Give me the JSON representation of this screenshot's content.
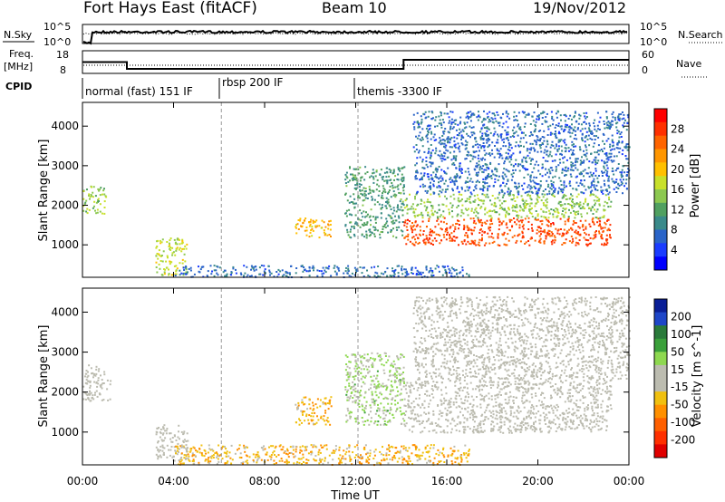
{
  "header": {
    "title": "Fort Hays East (fitACF)",
    "beam": "Beam 10",
    "date": "19/Nov/2012"
  },
  "noise_panel": {
    "left_label": "N.Sky",
    "right_label": "N.Search",
    "left_ticks": [
      "10^5",
      "10^0"
    ],
    "right_ticks": [
      "10^5",
      "10^0"
    ]
  },
  "freq_panel": {
    "left_label_1": "Freq.",
    "left_label_2": "[MHz]",
    "right_label": "Nave",
    "left_ticks": [
      "18",
      "8"
    ],
    "right_ticks": [
      "60",
      "0"
    ],
    "freq_series": [
      [
        0,
        13
      ],
      [
        1.95,
        13
      ],
      [
        1.95,
        10
      ],
      [
        14.1,
        10
      ],
      [
        14.1,
        14
      ],
      [
        24,
        14
      ]
    ]
  },
  "cpid_panel": {
    "label": "CPID",
    "modes": [
      {
        "start": 0,
        "end": 6.1,
        "name": "normal (fast) 151 IF"
      },
      {
        "start": 6.1,
        "end": 12.1,
        "name": "rbsp 200 IF"
      },
      {
        "start": 12.1,
        "end": 24,
        "name": "themis -3300 IF"
      }
    ]
  },
  "power_panel": {
    "ylabel": "Slant Range [km]",
    "yticks": [
      "4000",
      "3000",
      "2000",
      "1000"
    ],
    "colorbar_label": "Power [dB]",
    "colorbar_ticks": [
      "28",
      "24",
      "20",
      "16",
      "12",
      "8",
      "4"
    ],
    "colorbar_colors": [
      "#ff0000",
      "#ff3000",
      "#ff6400",
      "#ff9600",
      "#ffc000",
      "#c8e02a",
      "#8cc850",
      "#50a060",
      "#3a8a8a",
      "#2a64c8",
      "#1a3cff",
      "#0000ff"
    ]
  },
  "velocity_panel": {
    "ylabel": "Slant Range [km]",
    "yticks": [
      "4000",
      "3000",
      "2000",
      "1000"
    ],
    "colorbar_label": "Velocity [m s^-1]",
    "colorbar_ticks": [
      "200",
      "100",
      "50",
      "15",
      "-15",
      "-50",
      "-100",
      "-200"
    ],
    "colorbar_colors": [
      "#0a1e96",
      "#1e46c8",
      "#2a7a3a",
      "#3aa03a",
      "#8ed850",
      "#bcbcb0",
      "#bcbcb0",
      "#f0c010",
      "#ff9000",
      "#ff6000",
      "#ff3000",
      "#e00000"
    ]
  },
  "xaxis": {
    "label": "Time UT",
    "ticks": [
      "00:00",
      "04:00",
      "08:00",
      "12:00",
      "16:00",
      "20:00",
      "00:00"
    ]
  },
  "chart_data": {
    "type": "heatmap",
    "title": "Fort Hays East (fitACF)",
    "xlabel": "Time UT",
    "ylabel": "Slant Range [km]",
    "xlim_hours": [
      0,
      24
    ],
    "ylim_km": [
      180,
      4600
    ],
    "series": [
      {
        "name": "Power [dB]",
        "zlim": [
          0,
          30
        ],
        "regions": [
          {
            "t0": 0.0,
            "t1": 1.0,
            "r0": 1800,
            "r1": 2500,
            "value": 14
          },
          {
            "t0": 3.2,
            "t1": 4.6,
            "r0": 250,
            "r1": 1200,
            "value": 16
          },
          {
            "t0": 9.3,
            "t1": 10.9,
            "r0": 1200,
            "r1": 1700,
            "value": 20
          },
          {
            "t0": 11.5,
            "t1": 14.1,
            "r0": 1200,
            "r1": 3000,
            "value": 10
          },
          {
            "t0": 14.1,
            "t1": 23.2,
            "r0": 1000,
            "r1": 1700,
            "value": 26
          },
          {
            "t0": 14.1,
            "t1": 23.2,
            "r0": 1700,
            "r1": 2300,
            "value": 14
          },
          {
            "t0": 14.5,
            "t1": 24.0,
            "r0": 2300,
            "r1": 4400,
            "value": 6
          },
          {
            "t0": 4.0,
            "t1": 17.0,
            "r0": 200,
            "r1": 500,
            "value": 6
          }
        ]
      },
      {
        "name": "Velocity [m s^-1]",
        "zlim": [
          -200,
          200
        ],
        "regions": [
          {
            "t0": 0.0,
            "t1": 1.2,
            "r0": 1800,
            "r1": 2700,
            "value": 0
          },
          {
            "t0": 3.2,
            "t1": 4.6,
            "r0": 300,
            "r1": 1200,
            "value": 0
          },
          {
            "t0": 9.3,
            "t1": 10.9,
            "r0": 1200,
            "r1": 1900,
            "value": -60
          },
          {
            "t0": 11.5,
            "t1": 14.1,
            "r0": 1200,
            "r1": 3000,
            "value": 40
          },
          {
            "t0": 14.1,
            "t1": 23.2,
            "r0": 1000,
            "r1": 2300,
            "value": 0
          },
          {
            "t0": 14.5,
            "t1": 24.0,
            "r0": 2300,
            "r1": 4400,
            "value": 0
          },
          {
            "t0": 4.0,
            "t1": 17.0,
            "r0": 200,
            "r1": 700,
            "value": -60
          }
        ]
      }
    ]
  }
}
